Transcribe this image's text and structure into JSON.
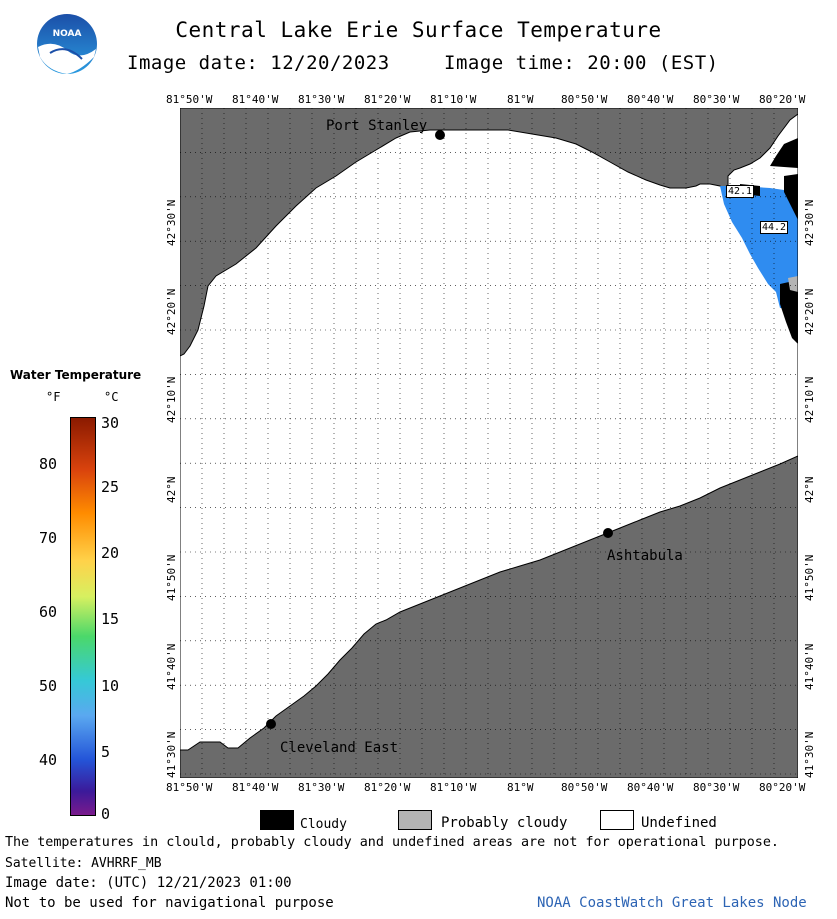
{
  "header": {
    "title": "Central Lake Erie Surface Temperature",
    "image_date": "Image date: 12/20/2023",
    "image_time": "Image time: 20:00 (EST)",
    "logo_text": "NOAA"
  },
  "axes": {
    "lon_top": [
      "81°50'W",
      "81°40'W",
      "81°30'W",
      "81°20'W",
      "81°10'W",
      "81°W",
      "80°50'W",
      "80°40'W",
      "80°30'W",
      "80°20'W"
    ],
    "lon_bottom": [
      "81°50'W",
      "81°40'W",
      "81°30'W",
      "81°20'W",
      "81°10'W",
      "81°W",
      "80°50'W",
      "80°40'W",
      "80°30'W",
      "80°20'W"
    ],
    "lat_left": [
      "42°30'N",
      "42°20'N",
      "42°10'N",
      "42°N",
      "41°50'N",
      "41°40'N",
      "41°30'N"
    ],
    "lat_right": [
      "42°30'N",
      "42°20'N",
      "42°10'N",
      "42°N",
      "41°50'N",
      "41°40'N",
      "41°30'N"
    ]
  },
  "places": {
    "port_stanley": "Port Stanley",
    "ashtabula": "Ashtabula",
    "cleveland_east": "Cleveland East"
  },
  "temps": {
    "t1": "42.1",
    "t2": "44.2"
  },
  "colorbar": {
    "title": "Water Temperature",
    "unit_f": "°F",
    "unit_c": "°C",
    "f_ticks": [
      "80",
      "70",
      "60",
      "50",
      "40"
    ],
    "c_ticks": [
      "30",
      "25",
      "20",
      "15",
      "10",
      "5",
      "0"
    ]
  },
  "key": {
    "cloudy": "Cloudy",
    "probably_cloudy": "Probably cloudy",
    "undefined": "Undefined"
  },
  "footer": {
    "disclaimer": "The temperatures in clould, probably cloudy and undefined areas are not for operational purpose.",
    "satellite": "Satellite: AVHRRF_MB",
    "utc_date": "Image date: (UTC) 12/21/2023  01:00",
    "nav": "Not to be used for navigational purpose",
    "credit": "NOAA CoastWatch Great Lakes Node"
  },
  "colors": {
    "land": "#6b6b6b",
    "water": "#ffffff",
    "cloud": "#000000",
    "temp_blue": "#2f8cf0",
    "credit_blue": "#2d64b4"
  }
}
